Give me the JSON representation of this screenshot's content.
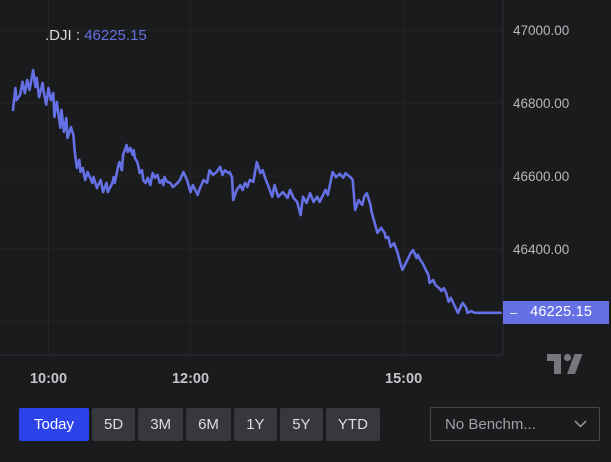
{
  "legend": {
    "symbol": ".DJI",
    "separator": " : ",
    "value": "46225.15"
  },
  "price_badge": {
    "dash": "–",
    "value": "46225.15"
  },
  "toolbar": {
    "ranges": [
      {
        "label": "Today",
        "active": true
      },
      {
        "label": "5D",
        "active": false
      },
      {
        "label": "3M",
        "active": false
      },
      {
        "label": "6M",
        "active": false
      },
      {
        "label": "1Y",
        "active": false
      },
      {
        "label": "5Y",
        "active": false
      },
      {
        "label": "YTD",
        "active": false
      }
    ],
    "benchmark_label": "No Benchm..."
  },
  "colors": {
    "background": "#1a1b1d",
    "line": "#6470e4",
    "badge_bg": "#6470e4",
    "badge_text": "#ffffff",
    "accent_active_button": "#2c43ea",
    "grid": "#242528",
    "axis_border": "#2e2f33",
    "price_label_text": "#b6b7ba",
    "time_label_text": "#c4c5c8",
    "logo": "#75777c"
  },
  "chart_data": {
    "type": "line",
    "title": ".DJI : 46225.15",
    "symbol": ".DJI",
    "last_price": 46225.15,
    "t_unit": "minutes since 09:30",
    "t_range": [
      -11,
      414
    ],
    "price_range": [
      46109.6,
      47082.2
    ],
    "grid": true,
    "x_ticks": [
      {
        "label": "10:00",
        "t": 30
      },
      {
        "label": "12:00",
        "t": 150
      },
      {
        "label": "15:00",
        "t": 330
      }
    ],
    "y_ticks": [
      {
        "label": "47000.00",
        "price": 47000
      },
      {
        "label": "46800.00",
        "price": 46800
      },
      {
        "label": "46600.00",
        "price": 46600
      },
      {
        "label": "46400.00",
        "price": 46400
      },
      {
        "label": "",
        "price": 46200
      }
    ],
    "points": [
      [
        0,
        46781
      ],
      [
        2,
        46841
      ],
      [
        3,
        46808
      ],
      [
        6,
        46822
      ],
      [
        8,
        46858
      ],
      [
        10,
        46827
      ],
      [
        12,
        46863
      ],
      [
        14,
        46836
      ],
      [
        17,
        46890
      ],
      [
        19,
        46844
      ],
      [
        20,
        46869
      ],
      [
        22,
        46816
      ],
      [
        25,
        46855
      ],
      [
        26,
        46830
      ],
      [
        28,
        46795
      ],
      [
        30,
        46841
      ],
      [
        32,
        46808
      ],
      [
        34,
        46827
      ],
      [
        35,
        46762
      ],
      [
        37,
        46803
      ],
      [
        40,
        46732
      ],
      [
        41,
        46781
      ],
      [
        43,
        46721
      ],
      [
        45,
        46759
      ],
      [
        46,
        46704
      ],
      [
        49,
        46734
      ],
      [
        51,
        46712
      ],
      [
        52,
        46671
      ],
      [
        54,
        46622
      ],
      [
        56,
        46644
      ],
      [
        57,
        46611
      ],
      [
        59,
        46622
      ],
      [
        61,
        46589
      ],
      [
        63,
        46611
      ],
      [
        67,
        46581
      ],
      [
        68,
        46597
      ],
      [
        71,
        46567
      ],
      [
        74,
        46589
      ],
      [
        75,
        46575
      ],
      [
        76,
        46556
      ],
      [
        79,
        46581
      ],
      [
        80,
        46556
      ],
      [
        84,
        46581
      ],
      [
        85,
        46597
      ],
      [
        86,
        46581
      ],
      [
        89,
        46630
      ],
      [
        90,
        46638
      ],
      [
        92,
        46616
      ],
      [
        93,
        46658
      ],
      [
        96,
        46685
      ],
      [
        97,
        46666
      ],
      [
        99,
        46677
      ],
      [
        101,
        46658
      ],
      [
        102,
        46671
      ],
      [
        103,
        46649
      ],
      [
        105,
        46638
      ],
      [
        106,
        46625
      ],
      [
        107,
        46608
      ],
      [
        109,
        46616
      ],
      [
        110,
        46589
      ],
      [
        112,
        46581
      ],
      [
        114,
        46595
      ],
      [
        116,
        46575
      ],
      [
        118,
        46608
      ],
      [
        120,
        46595
      ],
      [
        122,
        46603
      ],
      [
        124,
        46581
      ],
      [
        126,
        46589
      ],
      [
        127,
        46575
      ],
      [
        128,
        46597
      ],
      [
        130,
        46584
      ],
      [
        133,
        46581
      ],
      [
        135,
        46570
      ],
      [
        137,
        46575
      ],
      [
        139,
        46581
      ],
      [
        141,
        46589
      ],
      [
        144,
        46611
      ],
      [
        147,
        46589
      ],
      [
        150,
        46556
      ],
      [
        152,
        46575
      ],
      [
        156,
        46548
      ],
      [
        158,
        46567
      ],
      [
        161,
        46589
      ],
      [
        164,
        46581
      ],
      [
        166,
        46616
      ],
      [
        169,
        46603
      ],
      [
        172,
        46611
      ],
      [
        175,
        46625
      ],
      [
        177,
        46603
      ],
      [
        179,
        46616
      ],
      [
        182,
        46608
      ],
      [
        183,
        46611
      ],
      [
        185,
        46597
      ],
      [
        186,
        46534
      ],
      [
        189,
        46562
      ],
      [
        192,
        46575
      ],
      [
        194,
        46562
      ],
      [
        196,
        46581
      ],
      [
        198,
        46570
      ],
      [
        200,
        46589
      ],
      [
        203,
        46584
      ],
      [
        206,
        46638
      ],
      [
        209,
        46608
      ],
      [
        211,
        46616
      ],
      [
        213,
        46595
      ],
      [
        216,
        46570
      ],
      [
        219,
        46543
      ],
      [
        221,
        46575
      ],
      [
        224,
        46543
      ],
      [
        228,
        46556
      ],
      [
        232,
        46540
      ],
      [
        234,
        46562
      ],
      [
        237,
        46540
      ],
      [
        240,
        46529
      ],
      [
        243,
        46493
      ],
      [
        245,
        46543
      ],
      [
        248,
        46526
      ],
      [
        251,
        46553
      ],
      [
        254,
        46529
      ],
      [
        257,
        46543
      ],
      [
        259,
        46529
      ],
      [
        264,
        46562
      ],
      [
        266,
        46548
      ],
      [
        270,
        46611
      ],
      [
        273,
        46597
      ],
      [
        276,
        46606
      ],
      [
        279,
        46595
      ],
      [
        281,
        46608
      ],
      [
        285,
        46597
      ],
      [
        287,
        46589
      ],
      [
        289,
        46507
      ],
      [
        292,
        46534
      ],
      [
        295,
        46521
      ],
      [
        297,
        46545
      ],
      [
        299,
        46553
      ],
      [
        302,
        46521
      ],
      [
        303,
        46501
      ],
      [
        306,
        46466
      ],
      [
        308,
        46444
      ],
      [
        311,
        46458
      ],
      [
        314,
        46444
      ],
      [
        315,
        46430
      ],
      [
        317,
        46433
      ],
      [
        319,
        46406
      ],
      [
        322,
        46416
      ],
      [
        325,
        46389
      ],
      [
        327,
        46364
      ],
      [
        329,
        46343
      ],
      [
        331,
        46356
      ],
      [
        334,
        46375
      ],
      [
        336,
        46389
      ],
      [
        338,
        46397
      ],
      [
        341,
        46375
      ],
      [
        342,
        46384
      ],
      [
        344,
        46370
      ],
      [
        346,
        46362
      ],
      [
        348,
        46348
      ],
      [
        351,
        46329
      ],
      [
        352,
        46307
      ],
      [
        355,
        46315
      ],
      [
        357,
        46301
      ],
      [
        360,
        46293
      ],
      [
        362,
        46285
      ],
      [
        364,
        46293
      ],
      [
        366,
        46280
      ],
      [
        368,
        46255
      ],
      [
        370,
        46266
      ],
      [
        372,
        46252
      ],
      [
        374,
        46238
      ],
      [
        376,
        46225
      ],
      [
        379,
        46247
      ],
      [
        380,
        46252
      ],
      [
        383,
        46238
      ],
      [
        384,
        46225
      ],
      [
        387,
        46230
      ],
      [
        390,
        46225.15
      ],
      [
        395,
        46225.15
      ],
      [
        401,
        46225.15
      ],
      [
        406,
        46225.15
      ],
      [
        412,
        46225.15
      ]
    ]
  }
}
